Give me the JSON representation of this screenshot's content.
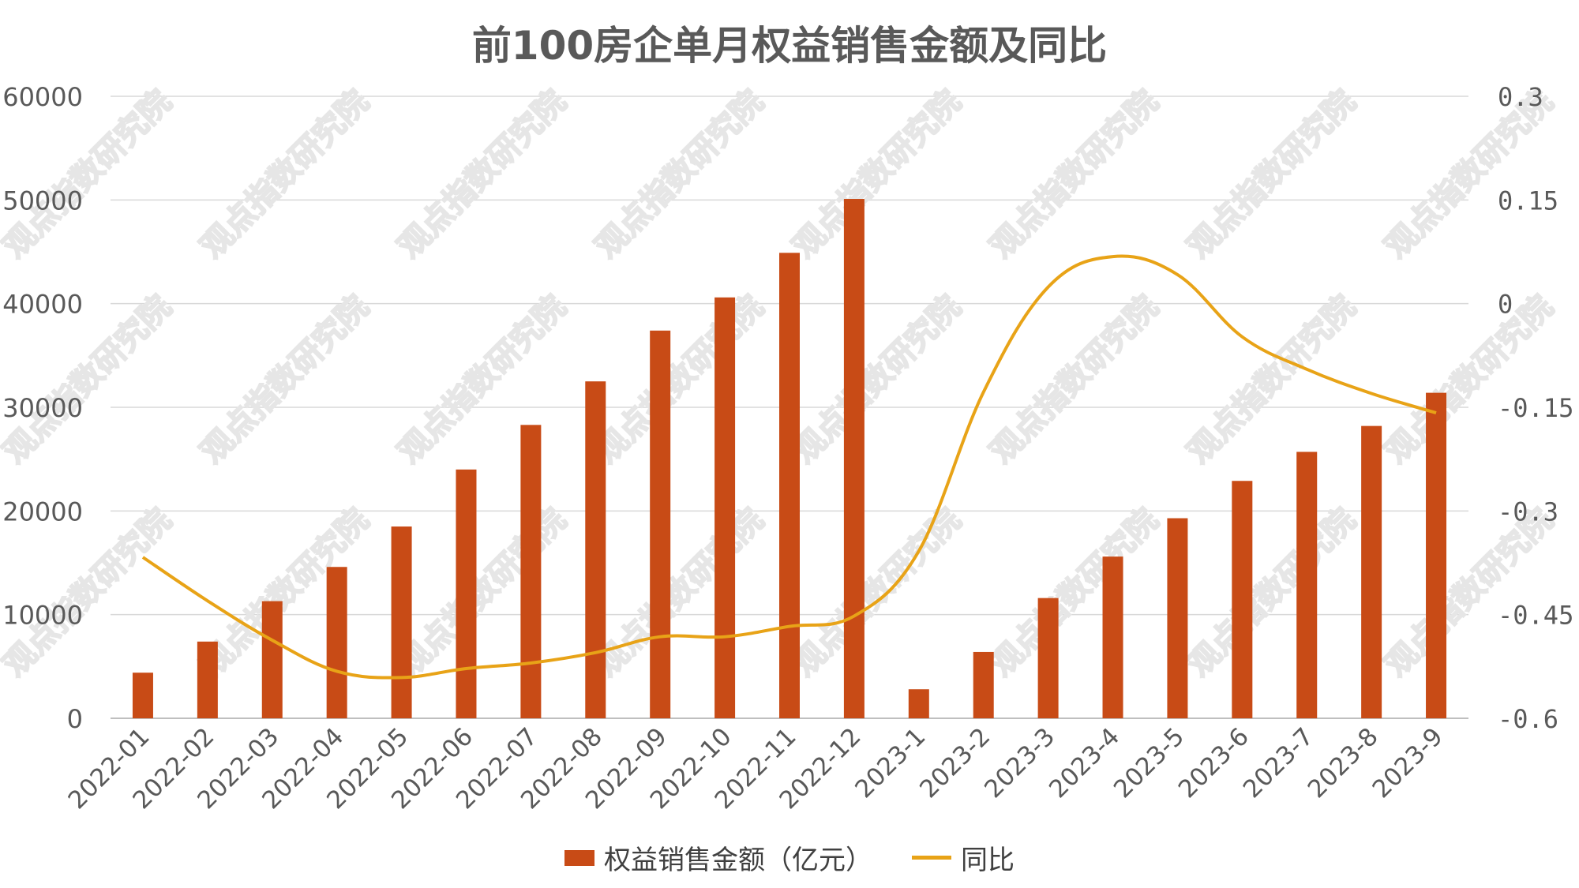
{
  "chart_data": {
    "type": "bar+line",
    "title": "前100房企单月权益销售金额及同比",
    "categories": [
      "2022-01",
      "2022-02",
      "2022-03",
      "2022-04",
      "2022-05",
      "2022-06",
      "2022-07",
      "2022-08",
      "2022-09",
      "2022-10",
      "2022-11",
      "2022-12",
      "2023-1",
      "2023-2",
      "2023-3",
      "2023-4",
      "2023-5",
      "2023-6",
      "2023-7",
      "2023-8",
      "2023-9"
    ],
    "series": [
      {
        "name": "权益销售金额（亿元）",
        "type": "bar",
        "axis": "left",
        "color": "#C84B16",
        "values": [
          4400,
          7400,
          11300,
          14600,
          18500,
          24000,
          28300,
          32500,
          37400,
          40600,
          44900,
          50100,
          2800,
          6400,
          11600,
          15600,
          19300,
          22900,
          25700,
          28200,
          31400
        ]
      },
      {
        "name": "同比",
        "type": "line",
        "axis": "right",
        "color": "#E8A317",
        "values": [
          -0.367,
          -0.43,
          -0.487,
          -0.532,
          -0.541,
          -0.528,
          -0.52,
          -0.505,
          -0.482,
          -0.482,
          -0.467,
          -0.452,
          -0.358,
          -0.128,
          0.024,
          0.068,
          0.042,
          -0.048,
          -0.095,
          -0.13,
          -0.158
        ]
      }
    ],
    "y_left": {
      "min": 0,
      "max": 60000,
      "ticks": [
        "0",
        "10000",
        "20000",
        "30000",
        "40000",
        "50000",
        "60000"
      ]
    },
    "y_right": {
      "min": -0.6,
      "max": 0.3,
      "ticks": [
        "-0.6",
        "-0.45",
        "-0.3",
        "-0.15",
        "0",
        "0.15",
        "0.3"
      ]
    },
    "grid": true,
    "legend_position": "bottom",
    "watermark": "观点指数研究院"
  }
}
